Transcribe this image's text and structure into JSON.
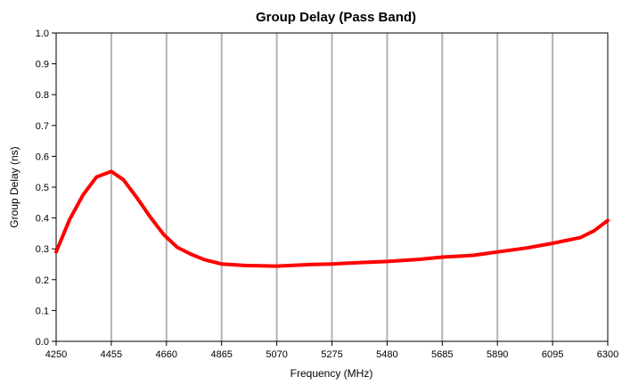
{
  "chart_data": {
    "type": "line",
    "title": "Group Delay (Pass Band)",
    "xlabel": "Frequency (MHz)",
    "ylabel": "Group Delay (ns)",
    "xlim": [
      4250,
      6300
    ],
    "ylim": [
      0.0,
      1.0
    ],
    "x_ticks": [
      "4250",
      "4455",
      "4660",
      "4865",
      "5070",
      "5275",
      "5480",
      "5685",
      "5890",
      "6095",
      "6300"
    ],
    "y_ticks": [
      "0.0",
      "0.1",
      "0.2",
      "0.3",
      "0.4",
      "0.5",
      "0.6",
      "0.7",
      "0.8",
      "0.9",
      "1.0"
    ],
    "grid": {
      "vertical": true,
      "horizontal": false
    },
    "series": [
      {
        "color": "#ff0000",
        "x": [
          4250,
          4300,
          4350,
          4400,
          4455,
          4500,
          4550,
          4600,
          4650,
          4700,
          4750,
          4800,
          4865,
          4950,
          5070,
          5200,
          5275,
          5400,
          5480,
          5600,
          5685,
          5800,
          5890,
          6000,
          6095,
          6200,
          6250,
          6300
        ],
        "y": [
          0.29,
          0.395,
          0.475,
          0.533,
          0.551,
          0.524,
          0.466,
          0.403,
          0.346,
          0.305,
          0.283,
          0.265,
          0.251,
          0.246,
          0.244,
          0.249,
          0.251,
          0.256,
          0.259,
          0.266,
          0.273,
          0.279,
          0.29,
          0.303,
          0.318,
          0.337,
          0.359,
          0.392
        ]
      }
    ]
  }
}
